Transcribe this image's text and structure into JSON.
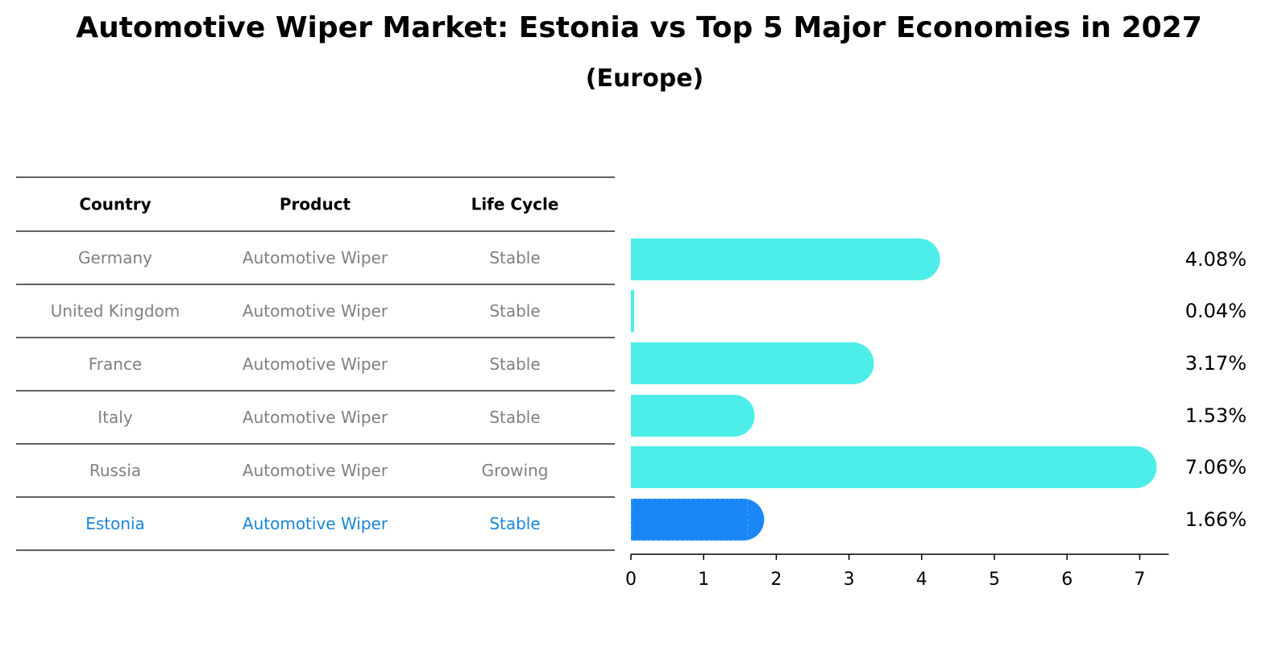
{
  "title": "Automotive Wiper Market: Estonia vs Top 5 Major Economies in 2027",
  "subtitle": "(Europe)",
  "table": {
    "headers": [
      "Country",
      "Product",
      "Life Cycle"
    ],
    "rows": [
      {
        "country": "Germany",
        "product": "Automotive Wiper",
        "life_cycle": "Stable",
        "highlight": false
      },
      {
        "country": "United Kingdom",
        "product": "Automotive Wiper",
        "life_cycle": "Stable",
        "highlight": false
      },
      {
        "country": "France",
        "product": "Automotive Wiper",
        "life_cycle": "Stable",
        "highlight": false
      },
      {
        "country": "Italy",
        "product": "Automotive Wiper",
        "life_cycle": "Stable",
        "highlight": false
      },
      {
        "country": "Russia",
        "product": "Automotive Wiper",
        "life_cycle": "Growing",
        "highlight": false
      },
      {
        "country": "Estonia",
        "product": "Automotive Wiper",
        "life_cycle": "Stable",
        "highlight": true
      }
    ]
  },
  "colors": {
    "bar": "#4ded e9",
    "bar_highlight": "#1a85f5",
    "text_muted": "#808080",
    "text_highlight": "#1a85d8"
  },
  "chart_data": {
    "type": "bar",
    "orientation": "horizontal",
    "categories": [
      "Germany",
      "United Kingdom",
      "France",
      "Italy",
      "Russia",
      "Estonia"
    ],
    "values": [
      4.08,
      0.04,
      3.17,
      1.53,
      7.06,
      1.66
    ],
    "value_labels": [
      "4.08%",
      "0.04%",
      "3.17%",
      "1.53%",
      "7.06%",
      "1.66%"
    ],
    "highlight_category": "Estonia",
    "xlim": [
      0,
      7.4
    ],
    "xticks": [
      0,
      1,
      2,
      3,
      4,
      5,
      6,
      7
    ],
    "xtick_labels": [
      "0",
      "1",
      "2",
      "3",
      "4",
      "5",
      "6",
      "7"
    ],
    "grid": false
  }
}
